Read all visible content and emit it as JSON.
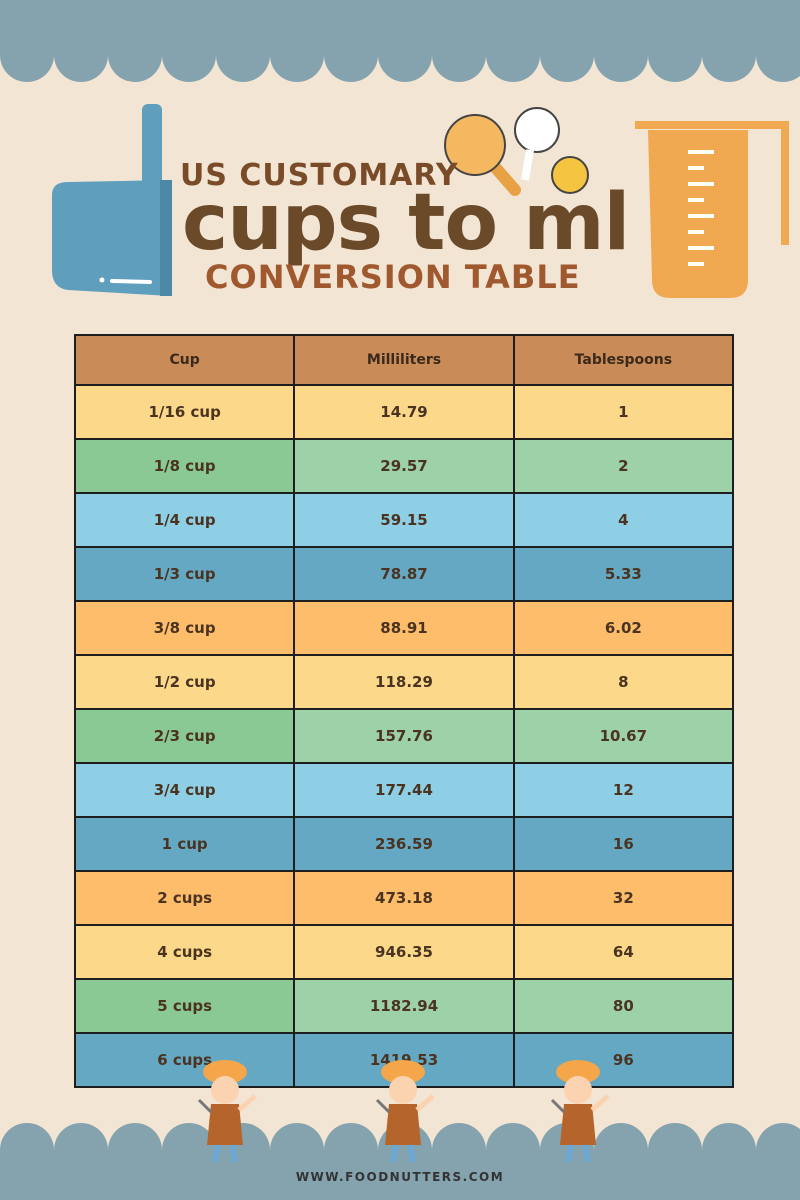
{
  "header": {
    "kicker": "US CUSTOMARY",
    "title": "cups to ml",
    "subtitle": "CONVERSION TABLE"
  },
  "table": {
    "columns": [
      "Cup",
      "Milliliters",
      "Tablespoons"
    ],
    "rows": [
      [
        "1/16 cup",
        "14.79",
        "1"
      ],
      [
        "1/8 cup",
        "29.57",
        "2"
      ],
      [
        "1/4 cup",
        "59.15",
        "4"
      ],
      [
        "1/3 cup",
        "78.87",
        "5.33"
      ],
      [
        "3/8 cup",
        "88.91",
        "6.02"
      ],
      [
        "1/2 cup",
        "118.29",
        "8"
      ],
      [
        "2/3 cup",
        "157.76",
        "10.67"
      ],
      [
        "3/4 cup",
        "177.44",
        "12"
      ],
      [
        "1 cup",
        "236.59",
        "16"
      ],
      [
        "2 cups",
        "473.18",
        "32"
      ],
      [
        "4 cups",
        "946.35",
        "64"
      ],
      [
        "5 cups",
        "1182.94",
        "80"
      ],
      [
        "6 cups",
        "1419.53",
        "96"
      ]
    ]
  },
  "footer": {
    "url": "WWW.FOODNUTTERS.COM"
  }
}
